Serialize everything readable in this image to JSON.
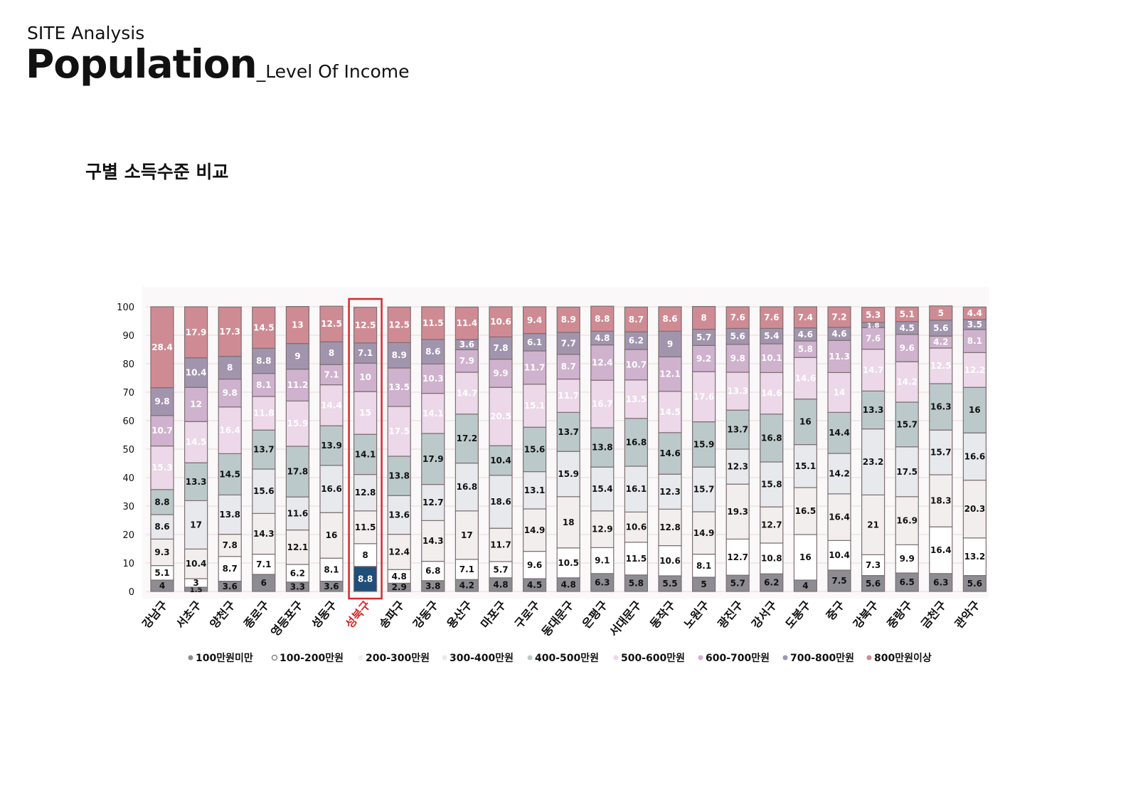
{
  "header": {
    "kicker": "SITE Analysis",
    "title": "Population",
    "subtitle": "_Level Of Income"
  },
  "chart_data": {
    "type": "bar",
    "stacked": true,
    "title": "구별 소득수준 비교",
    "xlabel": "",
    "ylabel": "",
    "ylim": [
      0,
      100
    ],
    "yticks": [
      0,
      10,
      20,
      30,
      40,
      50,
      60,
      70,
      80,
      90,
      100
    ],
    "grid": true,
    "legend_position": "bottom",
    "highlight_category": "성북구",
    "highlight_color": "#d42a2a",
    "highlight_fill": "#1f4e7a",
    "categories": [
      "강남구",
      "서초구",
      "양천구",
      "종로구",
      "영등포구",
      "성동구",
      "성북구",
      "송파구",
      "강동구",
      "용산구",
      "마포구",
      "구로구",
      "동대문구",
      "은평구",
      "서대문구",
      "동작구",
      "노원구",
      "광진구",
      "강서구",
      "도봉구",
      "중구",
      "강북구",
      "중랑구",
      "금천구",
      "관악구"
    ],
    "series": [
      {
        "name": "100만원미만",
        "color": "#8c8c92",
        "label_color": "#111111",
        "values": [
          4,
          1.5,
          3.6,
          6,
          3.3,
          3.6,
          8.8,
          2.9,
          3.8,
          4.2,
          4.8,
          4.5,
          4.8,
          6.3,
          5.8,
          5.5,
          5,
          5.7,
          6.2,
          4,
          7.5,
          5.6,
          6.5,
          6.3,
          5.6
        ]
      },
      {
        "name": "100-200만원",
        "color": "#ffffff",
        "label_color": "#111111",
        "values": [
          5.1,
          3,
          8.7,
          7.1,
          6.2,
          8.1,
          8,
          4.8,
          6.8,
          7.1,
          5.7,
          9.6,
          10.5,
          9.1,
          11.5,
          10.6,
          8.1,
          12.7,
          10.8,
          16,
          10.4,
          7.3,
          9.9,
          16.4,
          13.2
        ]
      },
      {
        "name": "200-300만원",
        "color": "#f2eeee",
        "label_color": "#111111",
        "values": [
          9.3,
          10.4,
          7.8,
          14.3,
          12.1,
          16,
          11.5,
          12.4,
          14.3,
          17,
          11.7,
          14.9,
          18,
          12.9,
          10.6,
          12.8,
          14.9,
          19.3,
          12.7,
          16.5,
          16.4,
          21,
          16.9,
          18.3,
          20.3
        ]
      },
      {
        "name": "300-400만원",
        "color": "#e7e9ec",
        "label_color": "#111111",
        "values": [
          8.6,
          17,
          13.8,
          15.6,
          11.6,
          16.6,
          12.8,
          13.6,
          12.7,
          16.8,
          18.6,
          13.1,
          15.9,
          15.4,
          16.1,
          12.3,
          15.7,
          12.3,
          15.8,
          15.1,
          14.2,
          23.2,
          17.5,
          15.7,
          16.6
        ]
      },
      {
        "name": "400-500만원",
        "color": "#bcc9ca",
        "label_color": "#111111",
        "alt_label_color": "#ffffff",
        "values": [
          8.8,
          13.3,
          14.5,
          13.7,
          17.8,
          13.9,
          14.1,
          13.8,
          17.9,
          17.2,
          10.4,
          15.6,
          13.7,
          13.8,
          16.8,
          14.6,
          15.9,
          13.7,
          16.8,
          16,
          14.4,
          13.3,
          15.7,
          16.3,
          16
        ]
      },
      {
        "name": "500-600만원",
        "color": "#ecd8e8",
        "label_color": "#ffffff",
        "values": [
          15.3,
          14.5,
          16.4,
          11.8,
          15.9,
          14.4,
          15,
          17.5,
          14.1,
          14.7,
          20.5,
          15.1,
          11.7,
          16.7,
          13.5,
          14.5,
          17.6,
          13.3,
          14.6,
          14.6,
          14,
          14.7,
          14.2,
          12.5,
          12.2
        ]
      },
      {
        "name": "600-700만원",
        "color": "#cfb2cd",
        "label_color": "#ffffff",
        "values": [
          10.7,
          12,
          9.8,
          8.1,
          11.2,
          7.1,
          10,
          13.5,
          10.3,
          7.9,
          9.9,
          11.7,
          8.7,
          12.4,
          10.7,
          12.1,
          9.2,
          9.8,
          10.1,
          5.8,
          11.3,
          7.6,
          9.6,
          4.2,
          8.1
        ]
      },
      {
        "name": "700-800만원",
        "color": "#a195ae",
        "label_color": "#ffffff",
        "values": [
          9.8,
          10.4,
          8,
          8.8,
          9,
          8,
          7.1,
          8.9,
          8.6,
          3.6,
          7.8,
          6.1,
          7.7,
          4.8,
          6.2,
          9,
          5.7,
          5.6,
          5.4,
          4.6,
          4.6,
          1.8,
          4.5,
          5.6,
          3.5
        ]
      },
      {
        "name": "800만원이상",
        "color": "#cf8b93",
        "label_color": "#ffffff",
        "values": [
          28.4,
          17.9,
          17.3,
          14.5,
          13,
          12.5,
          12.5,
          12.5,
          11.5,
          11.4,
          10.6,
          9.4,
          8.9,
          8.8,
          8.7,
          8.6,
          8,
          7.6,
          7.6,
          7.4,
          7.2,
          5.3,
          5.1,
          5,
          4.4
        ]
      }
    ]
  }
}
